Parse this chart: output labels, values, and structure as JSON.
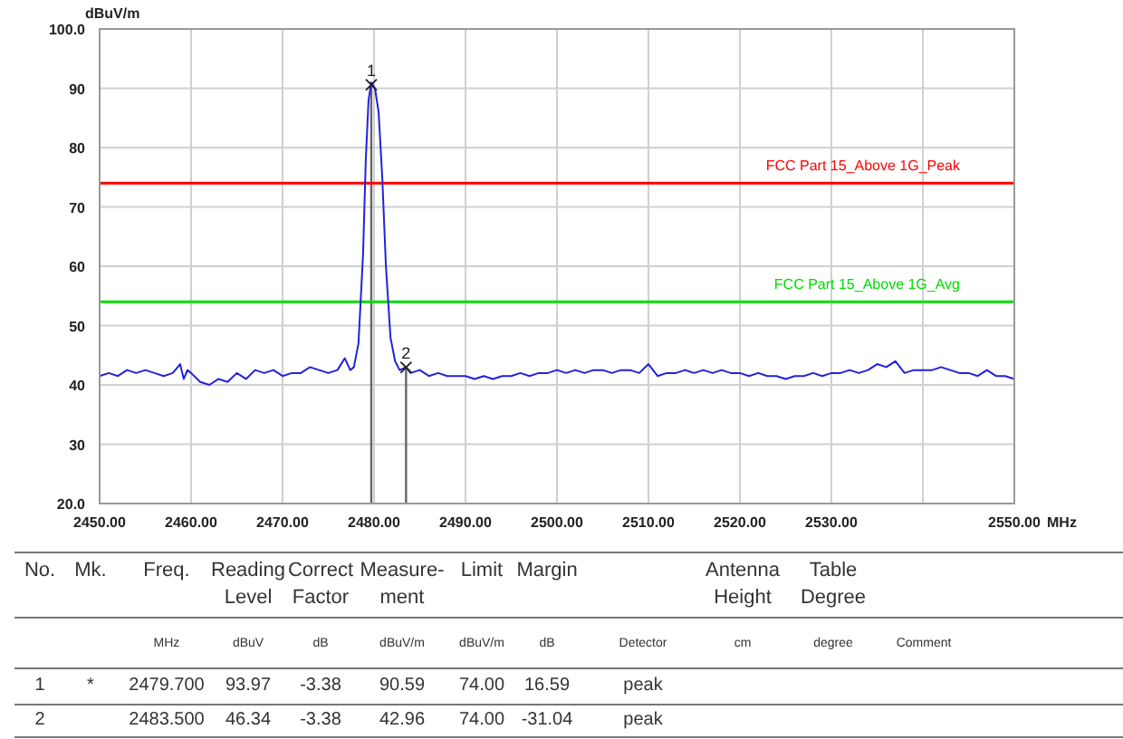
{
  "chart_data": {
    "type": "line",
    "xlabel": "MHz",
    "ylabel": "dBuV/m",
    "xlim": [
      2450,
      2550
    ],
    "xticks": [
      {
        "value": 2450,
        "label": "2450.00"
      },
      {
        "value": 2460,
        "label": "2460.00"
      },
      {
        "value": 2470,
        "label": "2470.00"
      },
      {
        "value": 2480,
        "label": "2480.00"
      },
      {
        "value": 2490,
        "label": "2490.00"
      },
      {
        "value": 2500,
        "label": "2500.00"
      },
      {
        "value": 2510,
        "label": "2510.00"
      },
      {
        "value": 2520,
        "label": "2520.00"
      },
      {
        "value": 2530,
        "label": "2530.00"
      },
      {
        "value": 2540,
        "label": null
      },
      {
        "value": 2550,
        "label": "2550.00"
      }
    ],
    "ylim": [
      20,
      100
    ],
    "yticks": [
      {
        "value": 20,
        "label": "20.0"
      },
      30,
      40,
      50,
      60,
      70,
      80,
      90,
      {
        "value": 100,
        "label": "100.0"
      }
    ],
    "grid": true,
    "marker": "none",
    "line_style": "solid",
    "series": [
      {
        "color": "#2222dd",
        "x": [
          2450,
          2451,
          2452,
          2453,
          2454,
          2455,
          2456,
          2457,
          2458,
          2458.8,
          2459.2,
          2459.6,
          2460,
          2461,
          2462,
          2463,
          2464,
          2465,
          2466,
          2467,
          2468,
          2469,
          2470,
          2471,
          2472,
          2473,
          2474,
          2475,
          2476,
          2476.8,
          2477.4,
          2477.8,
          2478.3,
          2478.8,
          2479.1,
          2479.4,
          2479.7,
          2480.1,
          2480.5,
          2480.9,
          2481.3,
          2481.8,
          2482.3,
          2482.8,
          2483.5,
          2484,
          2485,
          2486,
          2487,
          2488,
          2489,
          2490,
          2491,
          2492,
          2493,
          2494,
          2495,
          2496,
          2497,
          2498,
          2499,
          2500,
          2501,
          2502,
          2503,
          2504,
          2505,
          2506,
          2507,
          2508,
          2509,
          2510,
          2511,
          2512,
          2513,
          2514,
          2515,
          2516,
          2517,
          2518,
          2519,
          2520,
          2521,
          2522,
          2523,
          2524,
          2525,
          2526,
          2527,
          2528,
          2529,
          2530,
          2531,
          2532,
          2533,
          2534,
          2535,
          2536,
          2537,
          2538,
          2539,
          2540,
          2541,
          2542,
          2543,
          2544,
          2545,
          2546,
          2547,
          2548,
          2549,
          2550
        ],
        "values": [
          41.5,
          42,
          41.5,
          42.5,
          42,
          42.5,
          42,
          41.5,
          42,
          43.5,
          41,
          42.5,
          42,
          40.5,
          40,
          41,
          40.5,
          42,
          41,
          42.5,
          42,
          42.5,
          41.5,
          42,
          42,
          43,
          42.5,
          42,
          42.5,
          44.5,
          42.5,
          43,
          47,
          62,
          78,
          88,
          91,
          90,
          86,
          75,
          60,
          48,
          44,
          42.5,
          43,
          42,
          42.5,
          41.5,
          42,
          41.5,
          41.5,
          41.5,
          41,
          41.5,
          41,
          41.5,
          41.5,
          42,
          41.5,
          42,
          42,
          42.5,
          42,
          42.5,
          42,
          42.5,
          42.5,
          42,
          42.5,
          42.5,
          42,
          43.5,
          41.5,
          42,
          42,
          42.5,
          42,
          42.5,
          42,
          42.5,
          42,
          42,
          41.5,
          42,
          41.5,
          41.5,
          41,
          41.5,
          41.5,
          42,
          41.5,
          42,
          42,
          42.5,
          42,
          42.5,
          43.5,
          43,
          44,
          42,
          42.5,
          42.5,
          42.5,
          43,
          42.5,
          42,
          42,
          41.5,
          42.5,
          41.5,
          41.5,
          41
        ]
      }
    ],
    "ref_lines": [
      {
        "axis": "x",
        "value": 2479.7,
        "color": "#666666"
      },
      {
        "axis": "x",
        "value": 2483.5,
        "color": "#666666"
      },
      {
        "axis": "y",
        "value": 74,
        "label": "FCC Part 15_Above 1G_Peak",
        "color": "#ff0000"
      },
      {
        "axis": "y",
        "value": 54,
        "label": "FCC Part 15_Above 1G_Avg",
        "color": "#00dd00"
      }
    ],
    "annotations": [
      {
        "text": "1",
        "x": 2479.7,
        "y": 90.59
      },
      {
        "text": "2",
        "x": 2483.5,
        "y": 42.96
      },
      "No.",
      "Mk.",
      "Freq.",
      "Reading\nLevel",
      "Correct\nFactor",
      "Measure-\nment",
      "Limit",
      "Margin",
      "Antenna\nHeight",
      "Table\nDegree",
      "MHz",
      "dBuV",
      "dB",
      "dBuV/m",
      "dBuV/m",
      "dB",
      "Detector",
      "cm",
      "degree",
      "Comment",
      "1",
      "*",
      "2479.700",
      "93.97",
      "-3.38",
      "90.59",
      "74.00",
      "16.59",
      "peak",
      "2",
      "2483.500",
      "46.34",
      "-3.38",
      "42.96",
      "74.00",
      "-31.04",
      "peak"
    ]
  }
}
